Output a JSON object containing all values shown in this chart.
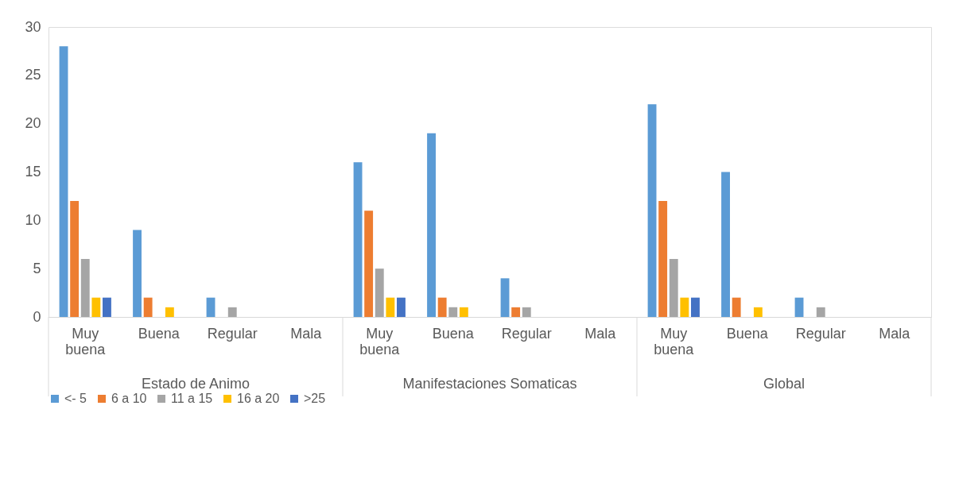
{
  "chart_data": {
    "type": "bar",
    "categories": [
      "Muy buena",
      "Buena",
      "Regular",
      "Mala",
      "Muy buena",
      "Buena",
      "Regular",
      "Mala",
      "Muy buena",
      "Buena",
      "Regular",
      "Mala"
    ],
    "annotations": [
      "Estado de Animo",
      "Manifestaciones Somaticas",
      "Global"
    ],
    "series": [
      {
        "name": "<- 5",
        "color": "#5b9bd5",
        "values": [
          28,
          9,
          2,
          0,
          16,
          19,
          4,
          0,
          22,
          15,
          2,
          0
        ]
      },
      {
        "name": "6 a 10",
        "color": "#ed7d31",
        "values": [
          12,
          2,
          0,
          0,
          11,
          2,
          1,
          0,
          12,
          2,
          0,
          0
        ]
      },
      {
        "name": "11 a 15",
        "color": "#a5a5a5",
        "values": [
          6,
          0,
          1,
          0,
          5,
          1,
          1,
          0,
          6,
          0,
          1,
          0
        ]
      },
      {
        "name": "16 a 20",
        "color": "#ffc000",
        "values": [
          2,
          1,
          0,
          0,
          2,
          1,
          0,
          0,
          2,
          1,
          0,
          0
        ]
      },
      {
        "name": ">25",
        "color": "#4472c4",
        "values": [
          2,
          0,
          0,
          0,
          2,
          0,
          0,
          0,
          2,
          0,
          0,
          0
        ]
      }
    ],
    "ylim": [
      0,
      30
    ],
    "yticks": [
      0,
      5,
      10,
      15,
      20,
      25,
      30
    ],
    "grid": false,
    "legend": "bottom"
  }
}
